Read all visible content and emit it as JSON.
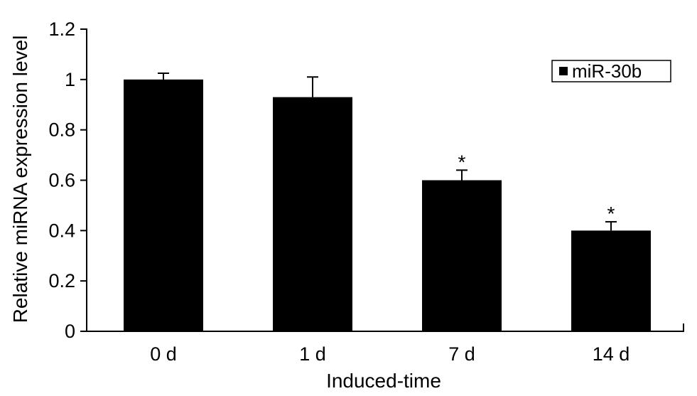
{
  "chart_data": {
    "type": "bar",
    "categories": [
      "0 d",
      "1 d",
      "7 d",
      "14 d"
    ],
    "series": [
      {
        "name": "miR-30b",
        "values": [
          1.0,
          0.93,
          0.6,
          0.4
        ],
        "error": [
          0.025,
          0.08,
          0.04,
          0.035
        ],
        "significance": [
          "",
          "",
          "*",
          "*"
        ]
      }
    ],
    "xlabel": "Induced-time",
    "ylabel": "Relative miRNA expression level",
    "ylim": [
      0,
      1.2
    ],
    "yticks": [
      "0",
      "0.2",
      "0.4",
      "0.6",
      "0.8",
      "1",
      "1.2"
    ],
    "legend_position": "top-right",
    "grid": false,
    "bar_color": "#000000"
  }
}
